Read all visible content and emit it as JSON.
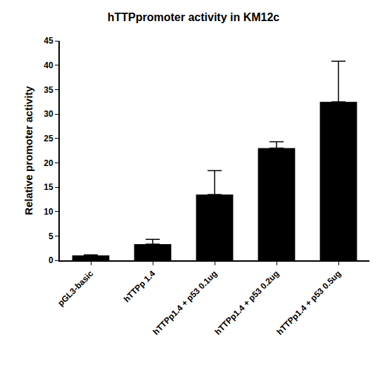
{
  "chart_data": {
    "type": "bar",
    "title": "hTTPpromoter activity in KM12c",
    "y_label": "Relative promoter activity",
    "categories": [
      "pGL3-basic",
      "hTTPp 1.4",
      "hTTPp1.4 + p53 0.1ug",
      "hTTPp1.4 + p53 0.2ug",
      "hTTPp1.4 + p53 0.5ug"
    ],
    "values": [
      1.0,
      3.3,
      13.5,
      23.0,
      32.5
    ],
    "errors": [
      0.1,
      1.0,
      4.9,
      1.3,
      8.3
    ],
    "color": "#000000",
    "ylim": [
      0,
      45
    ],
    "yticks": [
      0,
      5,
      10,
      15,
      20,
      25,
      30,
      35,
      40,
      45
    ],
    "grid": false
  }
}
